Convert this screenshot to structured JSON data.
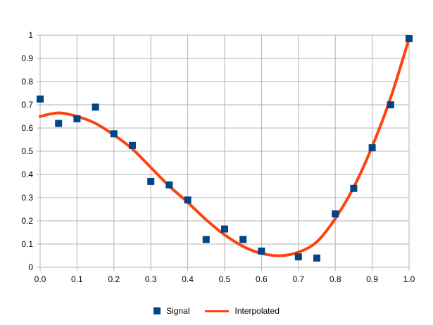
{
  "chart_data": {
    "type": "scatter",
    "title": "",
    "xlabel": "",
    "ylabel": "",
    "xlim": [
      0,
      1
    ],
    "ylim": [
      0,
      1
    ],
    "x_ticks": [
      "0.0",
      "0.1",
      "0.2",
      "0.3",
      "0.4",
      "0.5",
      "0.6",
      "0.7",
      "0.8",
      "0.9",
      "1.0"
    ],
    "y_ticks": [
      "0",
      "0.1",
      "0.2",
      "0.3",
      "0.4",
      "0.5",
      "0.6",
      "0.7",
      "0.8",
      "0.9",
      "1"
    ],
    "grid": true,
    "legend_position": "bottom",
    "series": [
      {
        "name": "Signal",
        "kind": "scatter",
        "color": "#004586",
        "x": [
          0.0,
          0.05,
          0.1,
          0.15,
          0.2,
          0.25,
          0.3,
          0.35,
          0.4,
          0.45,
          0.5,
          0.55,
          0.6,
          0.7,
          0.75,
          0.8,
          0.85,
          0.9,
          0.95,
          1.0
        ],
        "y": [
          0.725,
          0.62,
          0.64,
          0.69,
          0.575,
          0.525,
          0.37,
          0.355,
          0.29,
          0.12,
          0.165,
          0.12,
          0.07,
          0.045,
          0.04,
          0.23,
          0.34,
          0.515,
          0.7,
          0.985
        ]
      },
      {
        "name": "Interpolated",
        "kind": "line",
        "color": "#ff420e",
        "x": [
          0.0,
          0.05,
          0.1,
          0.15,
          0.2,
          0.25,
          0.3,
          0.35,
          0.4,
          0.45,
          0.5,
          0.55,
          0.6,
          0.65,
          0.7,
          0.75,
          0.8,
          0.85,
          0.9,
          0.95,
          1.0
        ],
        "y": [
          0.65,
          0.665,
          0.65,
          0.62,
          0.57,
          0.51,
          0.43,
          0.35,
          0.28,
          0.205,
          0.14,
          0.09,
          0.06,
          0.05,
          0.065,
          0.11,
          0.21,
          0.345,
          0.52,
          0.73,
          0.985
        ]
      }
    ]
  }
}
